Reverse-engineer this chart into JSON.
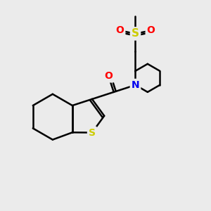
{
  "background_color": "#ebebeb",
  "atom_colors": {
    "S": "#cccc00",
    "N": "#0000ee",
    "O": "#ff0000",
    "C": "#000000"
  },
  "bond_color": "#000000",
  "bond_width": 1.8,
  "font_size_atoms": 10,
  "xlim": [
    0,
    10
  ],
  "ylim": [
    0,
    10
  ],
  "figsize": [
    3.0,
    3.0
  ],
  "dpi": 100
}
